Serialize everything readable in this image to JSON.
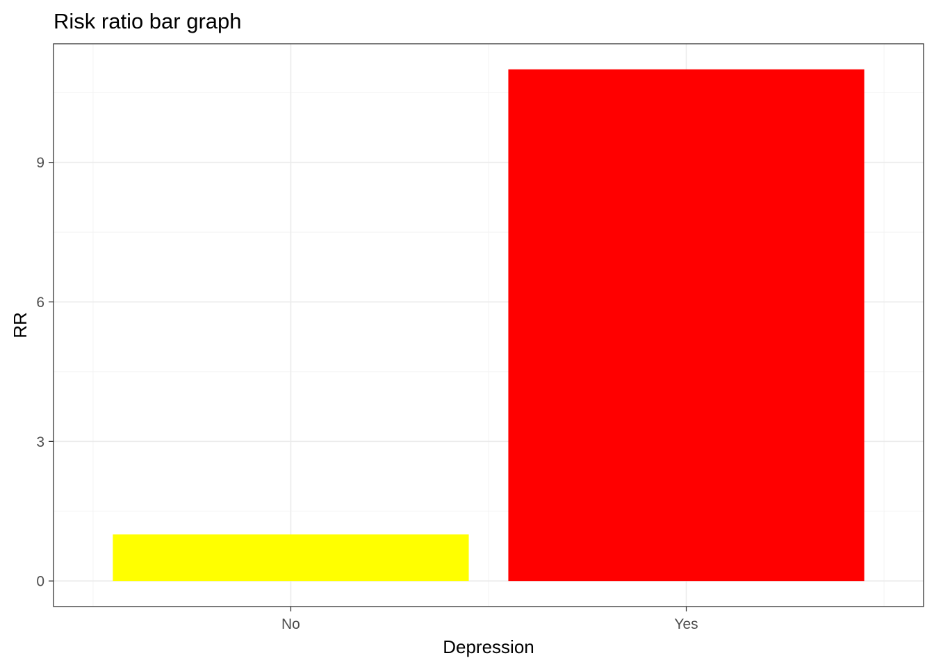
{
  "chart_data": {
    "type": "bar",
    "title": "Risk ratio bar graph",
    "xlabel": "Depression",
    "ylabel": "RR",
    "categories": [
      "No",
      "Yes"
    ],
    "values": [
      1,
      11
    ],
    "colors": [
      "#ffff00",
      "#ff0000"
    ],
    "yticks": [
      0,
      3,
      6,
      9
    ],
    "ylim": [
      -0.55,
      11.55
    ],
    "grid": true,
    "legend": "none"
  }
}
